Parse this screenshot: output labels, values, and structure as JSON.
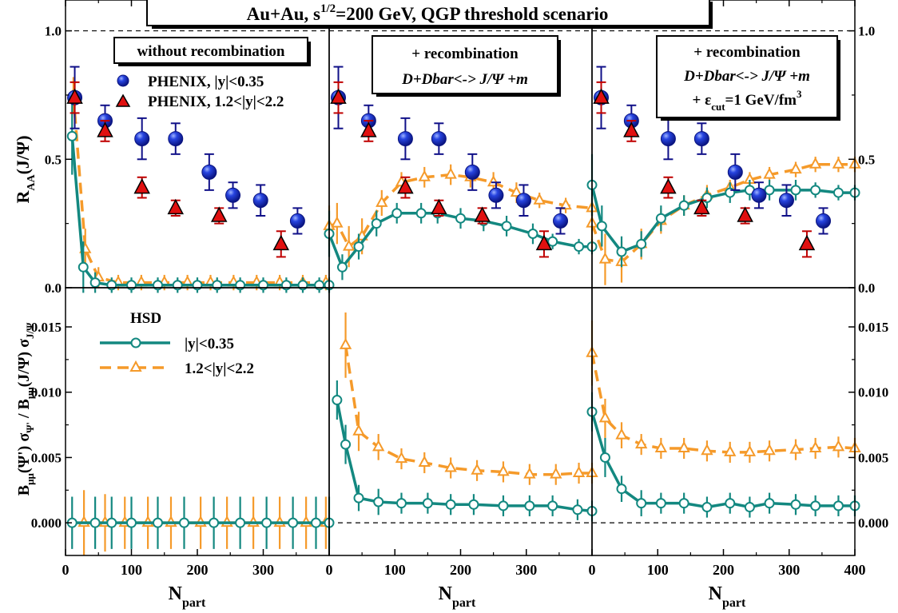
{
  "chart_data": {
    "type": "scatter",
    "title": "Au+Au,   s^{1/2}=200 GeV,    QGP  threshold  scenario",
    "title_parts": {
      "main": "Au+Au,   s",
      "sup": "1/2",
      "rest": "=200 GeV,    QGP  threshold  scenario"
    },
    "xlabel": {
      "main": "N",
      "sub": "part"
    },
    "ylabel_top": {
      "main": "R",
      "sub": "AA",
      "rest": "(J/Ψ)"
    },
    "ylabel_bottom": {
      "p1": "B",
      "s1": "μμ",
      "p2": "(Ψ') σ",
      "s2": "Ψ'",
      "p3": " / B",
      "s3": "μμ",
      "p4": "(J/Ψ) σ",
      "s4": "J/Ψ"
    },
    "xlim": [
      0,
      400
    ],
    "ylim_top": [
      0.0,
      1.12
    ],
    "ylim_bottom": [
      -0.0025,
      0.018
    ],
    "x_ticks": [
      0,
      100,
      200,
      300,
      400
    ],
    "x_tick_labels": [
      [
        "0",
        "100",
        "200",
        "300",
        ""
      ],
      [
        "0",
        "100",
        "200",
        "300",
        ""
      ],
      [
        "0",
        "100",
        "200",
        "300",
        "400"
      ]
    ],
    "y_ticks_top": [
      "0.0",
      "0.5",
      "1.0"
    ],
    "y_ticks_bottom": [
      "0.000",
      "0.005",
      "0.010",
      "0.015"
    ],
    "reference_lines": {
      "top": 1.0,
      "bottom": 0.0
    },
    "colors": {
      "phenix_mid": "#1a2fd0",
      "phenix_mid_err": "#101088",
      "phenix_fwd": "#e01010",
      "phenix_fwd_err": "#c00000",
      "hsd_mid": "#138880",
      "hsd_fwd": "#f59a2a"
    },
    "panel_labels": [
      {
        "lines": [
          "without recombination"
        ]
      },
      {
        "lines": [
          "+ recombination",
          "D+Dbar<-> J/Ψ +m"
        ]
      },
      {
        "lines": [
          "+ recombination",
          "D+Dbar<-> J/Ψ +m"
        ],
        "extra": {
          "pre": "+ ε",
          "sub": "cut",
          "mid": "=1 GeV/fm",
          "sup": "3"
        }
      }
    ],
    "legend_phenix": [
      {
        "name": "PHENIX, |y|<0.35",
        "marker": "circle"
      },
      {
        "name": "PHENIX, 1.2<|y|<2.2",
        "marker": "triangle"
      }
    ],
    "legend_hsd": {
      "title": "HSD",
      "entries": [
        {
          "name": "|y|<0.35",
          "style": "solid"
        },
        {
          "name": "1.2<|y|<2.2",
          "style": "dashed"
        }
      ]
    },
    "phenix_mid": {
      "x": [
        14,
        60,
        116,
        167,
        218,
        254,
        296,
        352
      ],
      "y": [
        0.74,
        0.65,
        0.58,
        0.58,
        0.45,
        0.36,
        0.34,
        0.26
      ],
      "err": [
        0.12,
        0.06,
        0.08,
        0.06,
        0.07,
        0.05,
        0.06,
        0.05
      ]
    },
    "phenix_fwd": {
      "x": [
        14,
        60,
        116,
        167,
        233,
        327
      ],
      "y": [
        0.74,
        0.61,
        0.39,
        0.31,
        0.28,
        0.17
      ],
      "err": [
        0.06,
        0.04,
        0.04,
        0.03,
        0.03,
        0.05
      ]
    },
    "hsd_top": [
      {
        "mid": {
          "x": [
            10,
            27,
            45,
            70,
            100,
            140,
            170,
            200,
            230,
            265,
            300,
            335,
            360,
            385,
            400
          ],
          "y": [
            0.59,
            0.08,
            0.02,
            0.01,
            0.01,
            0.01,
            0.01,
            0.01,
            0.01,
            0.01,
            0.01,
            0.01,
            0.01,
            0.01,
            0.01
          ],
          "err": [
            0.15,
            0.1,
            0.04,
            0.03,
            0.03,
            0.03,
            0.03,
            0.03,
            0.03,
            0.03,
            0.03,
            0.03,
            0.03,
            0.03,
            0.03
          ]
        },
        "fwd": {
          "x": [
            12,
            30,
            50,
            80,
            115,
            150,
            185,
            220,
            255,
            290,
            325,
            360,
            395
          ],
          "y": [
            0.75,
            0.15,
            0.04,
            0.02,
            0.02,
            0.02,
            0.02,
            0.02,
            0.02,
            0.02,
            0.02,
            0.02,
            0.02
          ],
          "err": [
            0.07,
            0.08,
            0.04,
            0.03,
            0.03,
            0.03,
            0.03,
            0.03,
            0.03,
            0.03,
            0.03,
            0.03,
            0.03
          ]
        }
      },
      {
        "mid": {
          "x": [
            0,
            20,
            45,
            72,
            103,
            140,
            165,
            200,
            235,
            270,
            310,
            340,
            380,
            400
          ],
          "y": [
            0.21,
            0.08,
            0.16,
            0.25,
            0.29,
            0.29,
            0.29,
            0.27,
            0.26,
            0.24,
            0.21,
            0.18,
            0.16,
            0.16
          ],
          "err": [
            0.09,
            0.05,
            0.05,
            0.05,
            0.04,
            0.04,
            0.04,
            0.04,
            0.04,
            0.04,
            0.04,
            0.03,
            0.03,
            0.03
          ]
        },
        "fwd": {
          "x": [
            0,
            12,
            30,
            50,
            80,
            110,
            145,
            185,
            215,
            250,
            285,
            320,
            360,
            400
          ],
          "y": [
            0.24,
            0.25,
            0.16,
            0.2,
            0.33,
            0.41,
            0.43,
            0.44,
            0.43,
            0.41,
            0.37,
            0.34,
            0.32,
            0.31
          ],
          "err": [
            0.08,
            0.08,
            0.08,
            0.07,
            0.05,
            0.04,
            0.04,
            0.04,
            0.04,
            0.04,
            0.04,
            0.03,
            0.03,
            0.03
          ]
        }
      },
      {
        "mid": {
          "x": [
            0,
            15,
            45,
            75,
            105,
            140,
            175,
            210,
            240,
            270,
            310,
            340,
            375,
            400
          ],
          "y": [
            0.4,
            0.24,
            0.14,
            0.17,
            0.27,
            0.32,
            0.35,
            0.37,
            0.38,
            0.38,
            0.38,
            0.38,
            0.37,
            0.37
          ],
          "err": [
            0.12,
            0.08,
            0.06,
            0.05,
            0.05,
            0.04,
            0.04,
            0.04,
            0.04,
            0.04,
            0.04,
            0.03,
            0.03,
            0.03
          ]
        },
        "fwd": {
          "x": [
            0,
            20,
            45,
            75,
            105,
            140,
            175,
            210,
            240,
            270,
            310,
            340,
            375,
            400
          ],
          "y": [
            0.25,
            0.11,
            0.1,
            0.17,
            0.26,
            0.32,
            0.36,
            0.39,
            0.42,
            0.44,
            0.46,
            0.48,
            0.48,
            0.48
          ],
          "err": [
            0.1,
            0.1,
            0.08,
            0.06,
            0.05,
            0.04,
            0.04,
            0.03,
            0.03,
            0.03,
            0.03,
            0.03,
            0.03,
            0.03
          ]
        }
      }
    ],
    "hsd_bottom": [
      {
        "mid": {
          "x": [
            10,
            45,
            70,
            100,
            140,
            180,
            225,
            265,
            305,
            345,
            380,
            400
          ],
          "y": [
            0.0,
            0.0,
            0.0,
            0.0,
            0.0,
            0.0,
            0.0,
            0.0,
            0.0,
            0.0,
            0.0,
            0.0
          ],
          "err": [
            0.002,
            0.002,
            0.002,
            0.002,
            0.002,
            0.002,
            0.002,
            0.002,
            0.002,
            0.002,
            0.002,
            0.002
          ]
        },
        "fwd": {
          "x": [
            28,
            60,
            90,
            125,
            160,
            205,
            245,
            285,
            325,
            365,
            395
          ],
          "y": [
            0.0,
            0.0,
            0.0,
            0.0,
            0.0,
            0.0,
            0.0,
            0.0,
            0.0,
            0.0,
            0.0
          ],
          "err": [
            0.0025,
            0.0022,
            0.002,
            0.002,
            0.002,
            0.002,
            0.002,
            0.002,
            0.002,
            0.002,
            0.002
          ]
        }
      },
      {
        "mid": {
          "x": [
            12,
            25,
            45,
            75,
            110,
            150,
            185,
            220,
            265,
            305,
            340,
            378,
            400
          ],
          "y": [
            0.0094,
            0.006,
            0.0019,
            0.0016,
            0.0015,
            0.0015,
            0.0014,
            0.0014,
            0.0013,
            0.0013,
            0.0013,
            0.001,
            0.0009
          ],
          "err": [
            0.0015,
            0.0015,
            0.001,
            0.001,
            0.0008,
            0.0008,
            0.0008,
            0.0008,
            0.0008,
            0.0008,
            0.0008,
            0.0008,
            0.0008
          ]
        },
        "fwd": {
          "x": [
            25,
            45,
            75,
            110,
            145,
            185,
            225,
            265,
            305,
            345,
            380,
            400
          ],
          "y": [
            0.0136,
            0.007,
            0.0058,
            0.0049,
            0.0046,
            0.0042,
            0.004,
            0.0039,
            0.0037,
            0.0037,
            0.0038,
            0.0038
          ],
          "err": [
            0.0025,
            0.0015,
            0.001,
            0.0008,
            0.0008,
            0.0008,
            0.0008,
            0.0008,
            0.0008,
            0.0008,
            0.0008,
            0.0008
          ]
        }
      },
      {
        "mid": {
          "x": [
            0,
            20,
            45,
            75,
            105,
            140,
            175,
            210,
            240,
            270,
            310,
            340,
            375,
            400
          ],
          "y": [
            0.0085,
            0.005,
            0.0026,
            0.0015,
            0.0015,
            0.0015,
            0.0012,
            0.0015,
            0.0012,
            0.0015,
            0.0014,
            0.0013,
            0.0013,
            0.0013
          ],
          "err": [
            0.0015,
            0.0015,
            0.001,
            0.001,
            0.0008,
            0.0008,
            0.0008,
            0.0008,
            0.0008,
            0.0008,
            0.0008,
            0.0008,
            0.0008,
            0.0008
          ]
        },
        "fwd": {
          "x": [
            0,
            20,
            45,
            75,
            105,
            140,
            175,
            210,
            240,
            270,
            310,
            340,
            375,
            400
          ],
          "y": [
            0.013,
            0.008,
            0.0067,
            0.006,
            0.0057,
            0.0057,
            0.0055,
            0.0054,
            0.0054,
            0.0055,
            0.0056,
            0.0057,
            0.0058,
            0.0057
          ],
          "err": [
            0.0025,
            0.0015,
            0.001,
            0.0008,
            0.0008,
            0.0008,
            0.0008,
            0.0008,
            0.0008,
            0.0008,
            0.0008,
            0.0008,
            0.0008,
            0.0008
          ]
        }
      }
    ]
  }
}
